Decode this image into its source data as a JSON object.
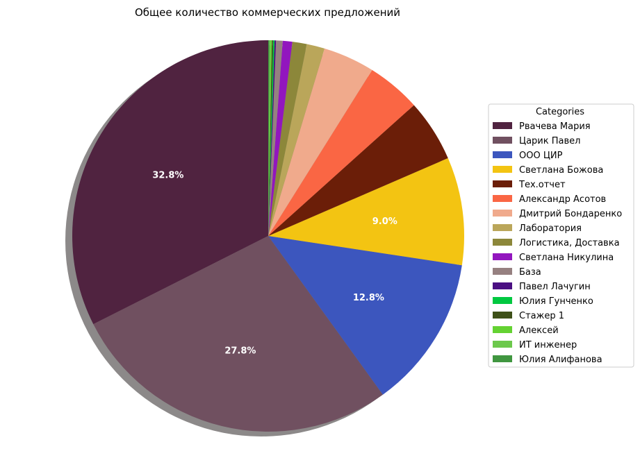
{
  "chart_data": {
    "type": "pie",
    "title": "Общее количество коммерческих предложений",
    "start_angle_deg": 90,
    "direction": "counterclockwise",
    "shadow": true,
    "legend": {
      "title": "Categories",
      "placement": "right"
    },
    "slices": [
      {
        "name": "Рвачева Мария",
        "value": 32.8,
        "label": "32.8%",
        "color": "#502340"
      },
      {
        "name": "Царик Павел",
        "value": 27.8,
        "label": "27.8%",
        "color": "#705060"
      },
      {
        "name": "ООО ЦИР",
        "value": 12.8,
        "label": "12.8%",
        "color": "#3C56BE"
      },
      {
        "name": "Светлана Божова",
        "value": 9.0,
        "label": "9.0%",
        "color": "#F3C412"
      },
      {
        "name": "Тех.отчет",
        "value": 5.2,
        "label": "",
        "color": "#6B1E08"
      },
      {
        "name": "Александр Асотов",
        "value": 4.5,
        "label": "",
        "color": "#FA6644"
      },
      {
        "name": "Дмитрий Бондаренко",
        "value": 4.3,
        "label": "",
        "color": "#F0AA8C"
      },
      {
        "name": "Лаборатория",
        "value": 1.5,
        "label": "",
        "color": "#BAA65A"
      },
      {
        "name": "Логистика,  Доставка",
        "value": 1.2,
        "label": "",
        "color": "#8C873A"
      },
      {
        "name": "Светлана Никулина",
        "value": 0.8,
        "label": "",
        "color": "#9216BE"
      },
      {
        "name": "База",
        "value": 0.55,
        "label": "",
        "color": "#968080"
      },
      {
        "name": "Павел Лачугин",
        "value": 0.12,
        "label": "",
        "color": "#4A0F82"
      },
      {
        "name": "Юлия Гунченко",
        "value": 0.12,
        "label": "",
        "color": "#00C840"
      },
      {
        "name": "Стажер 1",
        "value": 0.1,
        "label": "",
        "color": "#3E5018"
      },
      {
        "name": "Алексей",
        "value": 0.1,
        "label": "",
        "color": "#64D232"
      },
      {
        "name": "ИТ инженер",
        "value": 0.1,
        "label": "",
        "color": "#6CC84C"
      },
      {
        "name": "Юлия Алифанова",
        "value": 0.1,
        "label": "",
        "color": "#409640"
      }
    ]
  }
}
